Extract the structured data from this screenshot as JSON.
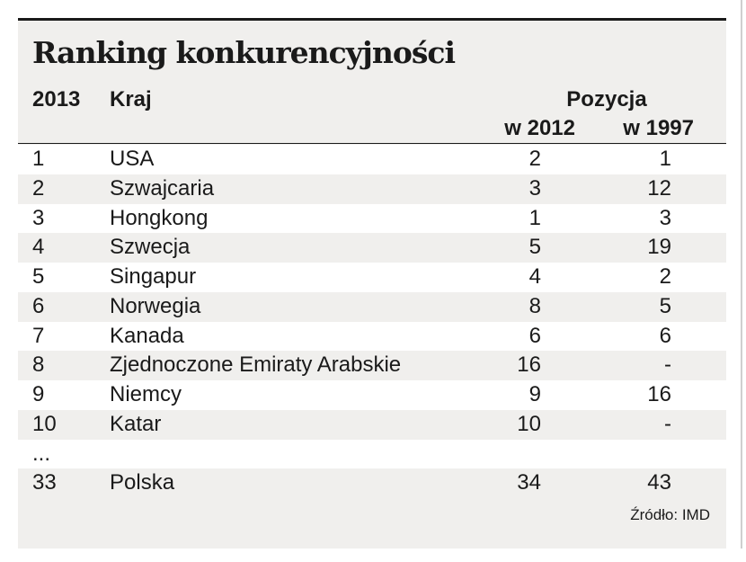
{
  "chart_data": {
    "type": "table",
    "title": "Ranking konkurencyjności",
    "header": {
      "rank": "2013",
      "country": "Kraj",
      "group": "Pozycja",
      "col_2012": "w 2012",
      "col_1997": "w 1997"
    },
    "rows": [
      {
        "rank": "1",
        "country": "USA",
        "p2012": "2",
        "p1997": "1"
      },
      {
        "rank": "2",
        "country": "Szwajcaria",
        "p2012": "3",
        "p1997": "12"
      },
      {
        "rank": "3",
        "country": "Hongkong",
        "p2012": "1",
        "p1997": "3"
      },
      {
        "rank": "4",
        "country": "Szwecja",
        "p2012": "5",
        "p1997": "19"
      },
      {
        "rank": "5",
        "country": "Singapur",
        "p2012": "4",
        "p1997": "2"
      },
      {
        "rank": "6",
        "country": "Norwegia",
        "p2012": "8",
        "p1997": "5"
      },
      {
        "rank": "7",
        "country": "Kanada",
        "p2012": "6",
        "p1997": "6"
      },
      {
        "rank": "8",
        "country": "Zjednoczone Emiraty Arabskie",
        "p2012": "16",
        "p1997": "-"
      },
      {
        "rank": "9",
        "country": "Niemcy",
        "p2012": "9",
        "p1997": "16"
      },
      {
        "rank": "10",
        "country": "Katar",
        "p2012": "10",
        "p1997": "-"
      },
      {
        "rank": "...",
        "country": "",
        "p2012": "",
        "p1997": ""
      },
      {
        "rank": "33",
        "country": "Polska",
        "p2012": "34",
        "p1997": "43"
      }
    ],
    "source": "Źródło: IMD"
  }
}
